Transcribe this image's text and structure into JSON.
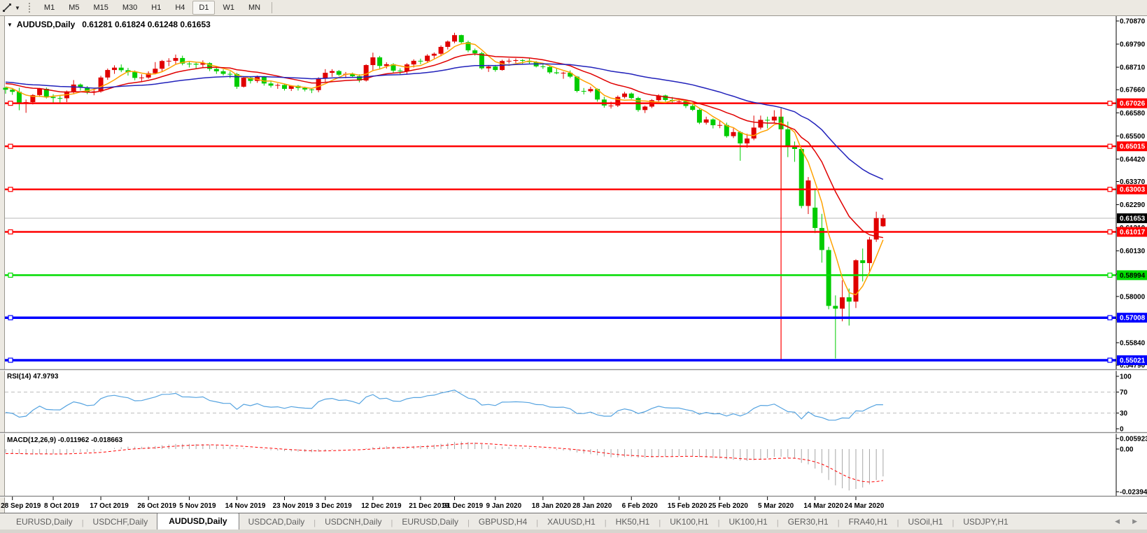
{
  "toolbar": {
    "icon": "chart-cursor",
    "timeframes": [
      "M1",
      "M5",
      "M15",
      "M30",
      "H1",
      "H4",
      "D1",
      "W1",
      "MN"
    ],
    "active_timeframe": "D1"
  },
  "chart": {
    "title": "AUDUSD,Daily",
    "ohlc_display": "0.61281 0.61824 0.61248 0.61653",
    "open": "0.61281",
    "high": "0.61824",
    "low": "0.61248",
    "close": "0.61653"
  },
  "price_axis": {
    "ticks": [
      "0.70870",
      "0.69790",
      "0.68710",
      "0.67660",
      "0.66580",
      "0.65500",
      "0.64420",
      "0.63370",
      "0.62290",
      "0.61210",
      "0.60130",
      "0.59050",
      "0.58000",
      "0.56920",
      "0.55840",
      "0.54790"
    ]
  },
  "current_price": {
    "value": 0.61653,
    "label": "0.61653",
    "line_color": "#B8B8B8",
    "box_color": "#000000",
    "text_color": "#FFFFFF"
  },
  "hlines": [
    {
      "price": 0.67026,
      "label": "0.67026",
      "color": "#FF0000",
      "label_text_color": "#FFFFFF",
      "width": 2.5
    },
    {
      "price": 0.65015,
      "label": "0.65015",
      "color": "#FF0000",
      "label_text_color": "#FFFFFF",
      "width": 2.5
    },
    {
      "price": 0.63003,
      "label": "0.63003",
      "color": "#FF0000",
      "label_text_color": "#FFFFFF",
      "width": 2.5
    },
    {
      "price": 0.61017,
      "label": "0.61017",
      "color": "#FF0000",
      "label_text_color": "#FFFFFF",
      "width": 2.5
    },
    {
      "price": 0.58994,
      "label": "0.58994",
      "color": "#00DC00",
      "label_text_color": "#000000",
      "width": 2.5
    },
    {
      "price": 0.57008,
      "label": "0.57008",
      "color": "#0000FF",
      "label_text_color": "#FFFFFF",
      "width": 3.5
    },
    {
      "price": 0.55021,
      "label": "0.55021",
      "color": "#0000FF",
      "label_text_color": "#FFFFFF",
      "width": 3.5
    }
  ],
  "objects": {
    "vertical_segment": {
      "candle_index": 114,
      "from_price": 0.6676,
      "to_price": 0.5505,
      "color": "#FF0000"
    }
  },
  "moving_averages": [
    {
      "name": "fast-ma",
      "period": 5,
      "method": "sma",
      "color": "#FFA200"
    },
    {
      "name": "medium-ma",
      "period": 20,
      "method": "lwma",
      "color": "#E00000"
    },
    {
      "name": "slow-ma",
      "period": 50,
      "method": "lwma",
      "color": "#2222BB"
    }
  ],
  "indicators": {
    "rsi": {
      "label": "RSI(14) 47.9793",
      "period": 14,
      "value": "47.9793",
      "levels": [
        70,
        30
      ],
      "scale_labels": [
        "100",
        "70",
        "30",
        "0"
      ],
      "color": "#55A3E0",
      "level_color": "#BDBDBD"
    },
    "macd": {
      "label": "MACD(12,26,9) -0.011962 -0.018663",
      "fast": 12,
      "slow": 26,
      "signal": 9,
      "main_value": "-0.011962",
      "signal_value": "-0.018663",
      "scale_max": "0.005923",
      "scale_zero": "0.00",
      "scale_min": "-0.023944",
      "bar_color": "#A6A6A6",
      "signal_color": "#FF0000"
    }
  },
  "date_axis": {
    "labels": [
      {
        "text": "28 Sep 2019",
        "candle_index": 1
      },
      {
        "text": "8 Oct 2019",
        "candle_index": 7
      },
      {
        "text": "17 Oct 2019",
        "candle_index": 14
      },
      {
        "text": "26 Oct 2019",
        "candle_index": 21
      },
      {
        "text": "5 Nov 2019",
        "candle_index": 27
      },
      {
        "text": "14 Nov 2019",
        "candle_index": 34
      },
      {
        "text": "23 Nov 2019",
        "candle_index": 41
      },
      {
        "text": "3 Dec 2019",
        "candle_index": 47
      },
      {
        "text": "12 Dec 2019",
        "candle_index": 54
      },
      {
        "text": "21 Dec 2019",
        "candle_index": 61
      },
      {
        "text": "31 Dec 2019",
        "candle_index": 66
      },
      {
        "text": "9 Jan 2020",
        "candle_index": 72
      },
      {
        "text": "18 Jan 2020",
        "candle_index": 79
      },
      {
        "text": "28 Jan 2020",
        "candle_index": 85
      },
      {
        "text": "6 Feb 2020",
        "candle_index": 92
      },
      {
        "text": "15 Feb 2020",
        "candle_index": 99
      },
      {
        "text": "25 Feb 2020",
        "candle_index": 105
      },
      {
        "text": "5 Mar 2020",
        "candle_index": 112
      },
      {
        "text": "14 Mar 2020",
        "candle_index": 119
      },
      {
        "text": "24 Mar 2020",
        "candle_index": 125
      }
    ]
  },
  "chart_data": {
    "type": "candlestick",
    "symbol": "AUDUSD",
    "timeframe": "Daily",
    "bull_color": "#E00000",
    "bear_color": "#00CC00",
    "note": "bullish candles are red, bearish candles are green in this template",
    "history_seed": [
      0.708,
      0.706,
      0.704,
      0.702,
      0.7,
      0.6985,
      0.697,
      0.695,
      0.693,
      0.691,
      0.689,
      0.687,
      0.685,
      0.683,
      0.6815,
      0.68,
      0.679,
      0.678,
      0.677,
      0.676,
      0.675,
      0.674,
      0.673,
      0.672,
      0.673,
      0.6745,
      0.676,
      0.6775,
      0.679,
      0.6805,
      0.682,
      0.6835,
      0.685,
      0.684,
      0.6825,
      0.681,
      0.6795,
      0.6785,
      0.6778,
      0.6772
    ],
    "ohlc": [
      [
        0.6775,
        0.6779,
        0.6747,
        0.6766
      ],
      [
        0.6766,
        0.6774,
        0.6742,
        0.6756
      ],
      [
        0.6756,
        0.6775,
        0.667,
        0.6703
      ],
      [
        0.6703,
        0.672,
        0.6658,
        0.6708
      ],
      [
        0.6708,
        0.6745,
        0.6697,
        0.6741
      ],
      [
        0.6741,
        0.6774,
        0.6732,
        0.677
      ],
      [
        0.677,
        0.6776,
        0.6725,
        0.6732
      ],
      [
        0.6732,
        0.6745,
        0.6702,
        0.6727
      ],
      [
        0.6727,
        0.6737,
        0.6706,
        0.6726
      ],
      [
        0.6726,
        0.6762,
        0.6708,
        0.6758
      ],
      [
        0.6758,
        0.6811,
        0.6747,
        0.679
      ],
      [
        0.679,
        0.6795,
        0.6762,
        0.6777
      ],
      [
        0.6777,
        0.6783,
        0.6745,
        0.6753
      ],
      [
        0.6753,
        0.6773,
        0.674,
        0.6758
      ],
      [
        0.6758,
        0.6831,
        0.6752,
        0.6823
      ],
      [
        0.6823,
        0.6865,
        0.6812,
        0.6858
      ],
      [
        0.6858,
        0.688,
        0.684,
        0.6869
      ],
      [
        0.6869,
        0.6884,
        0.6848,
        0.6857
      ],
      [
        0.6857,
        0.6868,
        0.6832,
        0.6848
      ],
      [
        0.6848,
        0.6856,
        0.681,
        0.6821
      ],
      [
        0.6821,
        0.6838,
        0.6805,
        0.6823
      ],
      [
        0.6823,
        0.6852,
        0.6817,
        0.6843
      ],
      [
        0.6843,
        0.6895,
        0.6838,
        0.6864
      ],
      [
        0.6864,
        0.6905,
        0.6852,
        0.69
      ],
      [
        0.69,
        0.6913,
        0.6876,
        0.6901
      ],
      [
        0.6901,
        0.693,
        0.6886,
        0.6914
      ],
      [
        0.6914,
        0.6925,
        0.688,
        0.6888
      ],
      [
        0.6888,
        0.6898,
        0.687,
        0.6887
      ],
      [
        0.6887,
        0.6895,
        0.6862,
        0.6883
      ],
      [
        0.6883,
        0.6903,
        0.6868,
        0.689
      ],
      [
        0.689,
        0.6894,
        0.6853,
        0.6863
      ],
      [
        0.6863,
        0.687,
        0.684,
        0.6852
      ],
      [
        0.6852,
        0.6861,
        0.6832,
        0.684
      ],
      [
        0.684,
        0.6852,
        0.682,
        0.6839
      ],
      [
        0.6839,
        0.6845,
        0.677,
        0.678
      ],
      [
        0.678,
        0.6825,
        0.6776,
        0.6822
      ],
      [
        0.6822,
        0.6827,
        0.6795,
        0.6807
      ],
      [
        0.6807,
        0.6832,
        0.6798,
        0.6826
      ],
      [
        0.6826,
        0.683,
        0.6785,
        0.6795
      ],
      [
        0.6795,
        0.6807,
        0.6776,
        0.6785
      ],
      [
        0.6785,
        0.6795,
        0.677,
        0.6788
      ],
      [
        0.6788,
        0.6792,
        0.6762,
        0.677
      ],
      [
        0.677,
        0.6787,
        0.676,
        0.6784
      ],
      [
        0.6784,
        0.6788,
        0.6762,
        0.6774
      ],
      [
        0.6774,
        0.678,
        0.6758,
        0.6767
      ],
      [
        0.6767,
        0.6773,
        0.675,
        0.6764
      ],
      [
        0.6764,
        0.6824,
        0.6754,
        0.6818
      ],
      [
        0.6818,
        0.6862,
        0.68,
        0.6845
      ],
      [
        0.6845,
        0.6862,
        0.6826,
        0.6853
      ],
      [
        0.6853,
        0.6858,
        0.683,
        0.6836
      ],
      [
        0.6836,
        0.6849,
        0.682,
        0.684
      ],
      [
        0.684,
        0.6846,
        0.6822,
        0.6829
      ],
      [
        0.6829,
        0.6838,
        0.68,
        0.6809
      ],
      [
        0.6809,
        0.6885,
        0.6804,
        0.6881
      ],
      [
        0.6881,
        0.6939,
        0.6855,
        0.6917
      ],
      [
        0.6917,
        0.6924,
        0.686,
        0.6877
      ],
      [
        0.6877,
        0.6894,
        0.6865,
        0.6885
      ],
      [
        0.6885,
        0.689,
        0.6845,
        0.6855
      ],
      [
        0.6855,
        0.6866,
        0.6838,
        0.6852
      ],
      [
        0.6852,
        0.689,
        0.684,
        0.6884
      ],
      [
        0.6884,
        0.6908,
        0.687,
        0.6901
      ],
      [
        0.6901,
        0.6911,
        0.6885,
        0.69
      ],
      [
        0.69,
        0.6932,
        0.6892,
        0.6925
      ],
      [
        0.6925,
        0.694,
        0.6912,
        0.6934
      ],
      [
        0.6934,
        0.6973,
        0.6922,
        0.6966
      ],
      [
        0.6966,
        0.6996,
        0.6954,
        0.6991
      ],
      [
        0.6991,
        0.7032,
        0.6983,
        0.7021
      ],
      [
        0.7021,
        0.7023,
        0.698,
        0.6988
      ],
      [
        0.6988,
        0.6995,
        0.6941,
        0.695
      ],
      [
        0.695,
        0.6958,
        0.6925,
        0.6936
      ],
      [
        0.6936,
        0.6943,
        0.686,
        0.6866
      ],
      [
        0.6866,
        0.688,
        0.6849,
        0.6874
      ],
      [
        0.6874,
        0.6882,
        0.685,
        0.6858
      ],
      [
        0.6858,
        0.6906,
        0.6855,
        0.69
      ],
      [
        0.69,
        0.6912,
        0.6888,
        0.6901
      ],
      [
        0.6901,
        0.6912,
        0.689,
        0.6904
      ],
      [
        0.6904,
        0.6909,
        0.6884,
        0.6901
      ],
      [
        0.6901,
        0.6913,
        0.6886,
        0.6895
      ],
      [
        0.6895,
        0.69,
        0.687,
        0.6875
      ],
      [
        0.6875,
        0.6886,
        0.6863,
        0.6872
      ],
      [
        0.6872,
        0.6878,
        0.684,
        0.6847
      ],
      [
        0.6847,
        0.6868,
        0.6838,
        0.6843
      ],
      [
        0.6843,
        0.685,
        0.6817,
        0.6845
      ],
      [
        0.6845,
        0.6856,
        0.682,
        0.6827
      ],
      [
        0.6827,
        0.683,
        0.6753,
        0.676
      ],
      [
        0.676,
        0.6774,
        0.6744,
        0.6759
      ],
      [
        0.6759,
        0.678,
        0.6752,
        0.6769
      ],
      [
        0.6769,
        0.6772,
        0.671,
        0.672
      ],
      [
        0.672,
        0.6733,
        0.6682,
        0.6692
      ],
      [
        0.6692,
        0.671,
        0.6678,
        0.6692
      ],
      [
        0.6692,
        0.6739,
        0.6685,
        0.6732
      ],
      [
        0.6732,
        0.6756,
        0.6725,
        0.6748
      ],
      [
        0.6748,
        0.6753,
        0.6722,
        0.6727
      ],
      [
        0.6727,
        0.6733,
        0.6663,
        0.6671
      ],
      [
        0.6671,
        0.6692,
        0.6657,
        0.6687
      ],
      [
        0.6687,
        0.6722,
        0.668,
        0.6717
      ],
      [
        0.6717,
        0.6745,
        0.671,
        0.6739
      ],
      [
        0.6739,
        0.6743,
        0.671,
        0.6718
      ],
      [
        0.6718,
        0.6732,
        0.67,
        0.6712
      ],
      [
        0.6712,
        0.6722,
        0.6698,
        0.6712
      ],
      [
        0.6712,
        0.6716,
        0.668,
        0.669
      ],
      [
        0.669,
        0.6702,
        0.6666,
        0.6672
      ],
      [
        0.6672,
        0.6678,
        0.6605,
        0.6612
      ],
      [
        0.6612,
        0.664,
        0.6603,
        0.6627
      ],
      [
        0.6627,
        0.6632,
        0.6585,
        0.66
      ],
      [
        0.66,
        0.6622,
        0.6586,
        0.6601
      ],
      [
        0.6601,
        0.6612,
        0.6542,
        0.6549
      ],
      [
        0.6549,
        0.6586,
        0.654,
        0.6568
      ],
      [
        0.6568,
        0.6573,
        0.6434,
        0.6515
      ],
      [
        0.6515,
        0.656,
        0.6495,
        0.6538
      ],
      [
        0.6538,
        0.6645,
        0.653,
        0.6589
      ],
      [
        0.6589,
        0.6645,
        0.658,
        0.6625
      ],
      [
        0.6625,
        0.664,
        0.6585,
        0.6622
      ],
      [
        0.6622,
        0.667,
        0.661,
        0.664
      ],
      [
        0.664,
        0.6685,
        0.6303,
        0.6581
      ],
      [
        0.6581,
        0.6617,
        0.6451,
        0.6501
      ],
      [
        0.6501,
        0.6524,
        0.6429,
        0.6489
      ],
      [
        0.6489,
        0.6494,
        0.6212,
        0.6223
      ],
      [
        0.6223,
        0.6358,
        0.6185,
        0.6342
      ],
      [
        0.6215,
        0.6305,
        0.6096,
        0.612
      ],
      [
        0.612,
        0.6186,
        0.5958,
        0.6017
      ],
      [
        0.6017,
        0.6032,
        0.574,
        0.5756
      ],
      [
        0.5756,
        0.5805,
        0.551,
        0.5743
      ],
      [
        0.5743,
        0.5876,
        0.5684,
        0.5796
      ],
      [
        0.5796,
        0.5837,
        0.5664,
        0.5776
      ],
      [
        0.5776,
        0.5974,
        0.5746,
        0.5969
      ],
      [
        0.5969,
        0.6024,
        0.587,
        0.5956
      ],
      [
        0.5956,
        0.6078,
        0.5912,
        0.6066
      ],
      [
        0.6066,
        0.6196,
        0.6055,
        0.6166
      ],
      [
        0.61281,
        0.61824,
        0.61248,
        0.61653
      ]
    ]
  },
  "tabs": {
    "scroll_left": "◀",
    "scroll_right": "▶",
    "items": [
      {
        "label": "EURUSD,Daily",
        "active": false
      },
      {
        "label": "USDCHF,Daily",
        "active": false
      },
      {
        "label": "AUDUSD,Daily",
        "active": true
      },
      {
        "label": "USDCAD,Daily",
        "active": false
      },
      {
        "label": "USDCNH,Daily",
        "active": false
      },
      {
        "label": "EURUSD,Daily",
        "active": false
      },
      {
        "label": "GBPUSD,H4",
        "active": false
      },
      {
        "label": "XAUUSD,H1",
        "active": false
      },
      {
        "label": "HK50,H1",
        "active": false
      },
      {
        "label": "UK100,H1",
        "active": false
      },
      {
        "label": "UK100,H1",
        "active": false
      },
      {
        "label": "GER30,H1",
        "active": false
      },
      {
        "label": "FRA40,H1",
        "active": false
      },
      {
        "label": "USOil,H1",
        "active": false
      },
      {
        "label": "USDJPY,H1",
        "active": false
      }
    ]
  }
}
